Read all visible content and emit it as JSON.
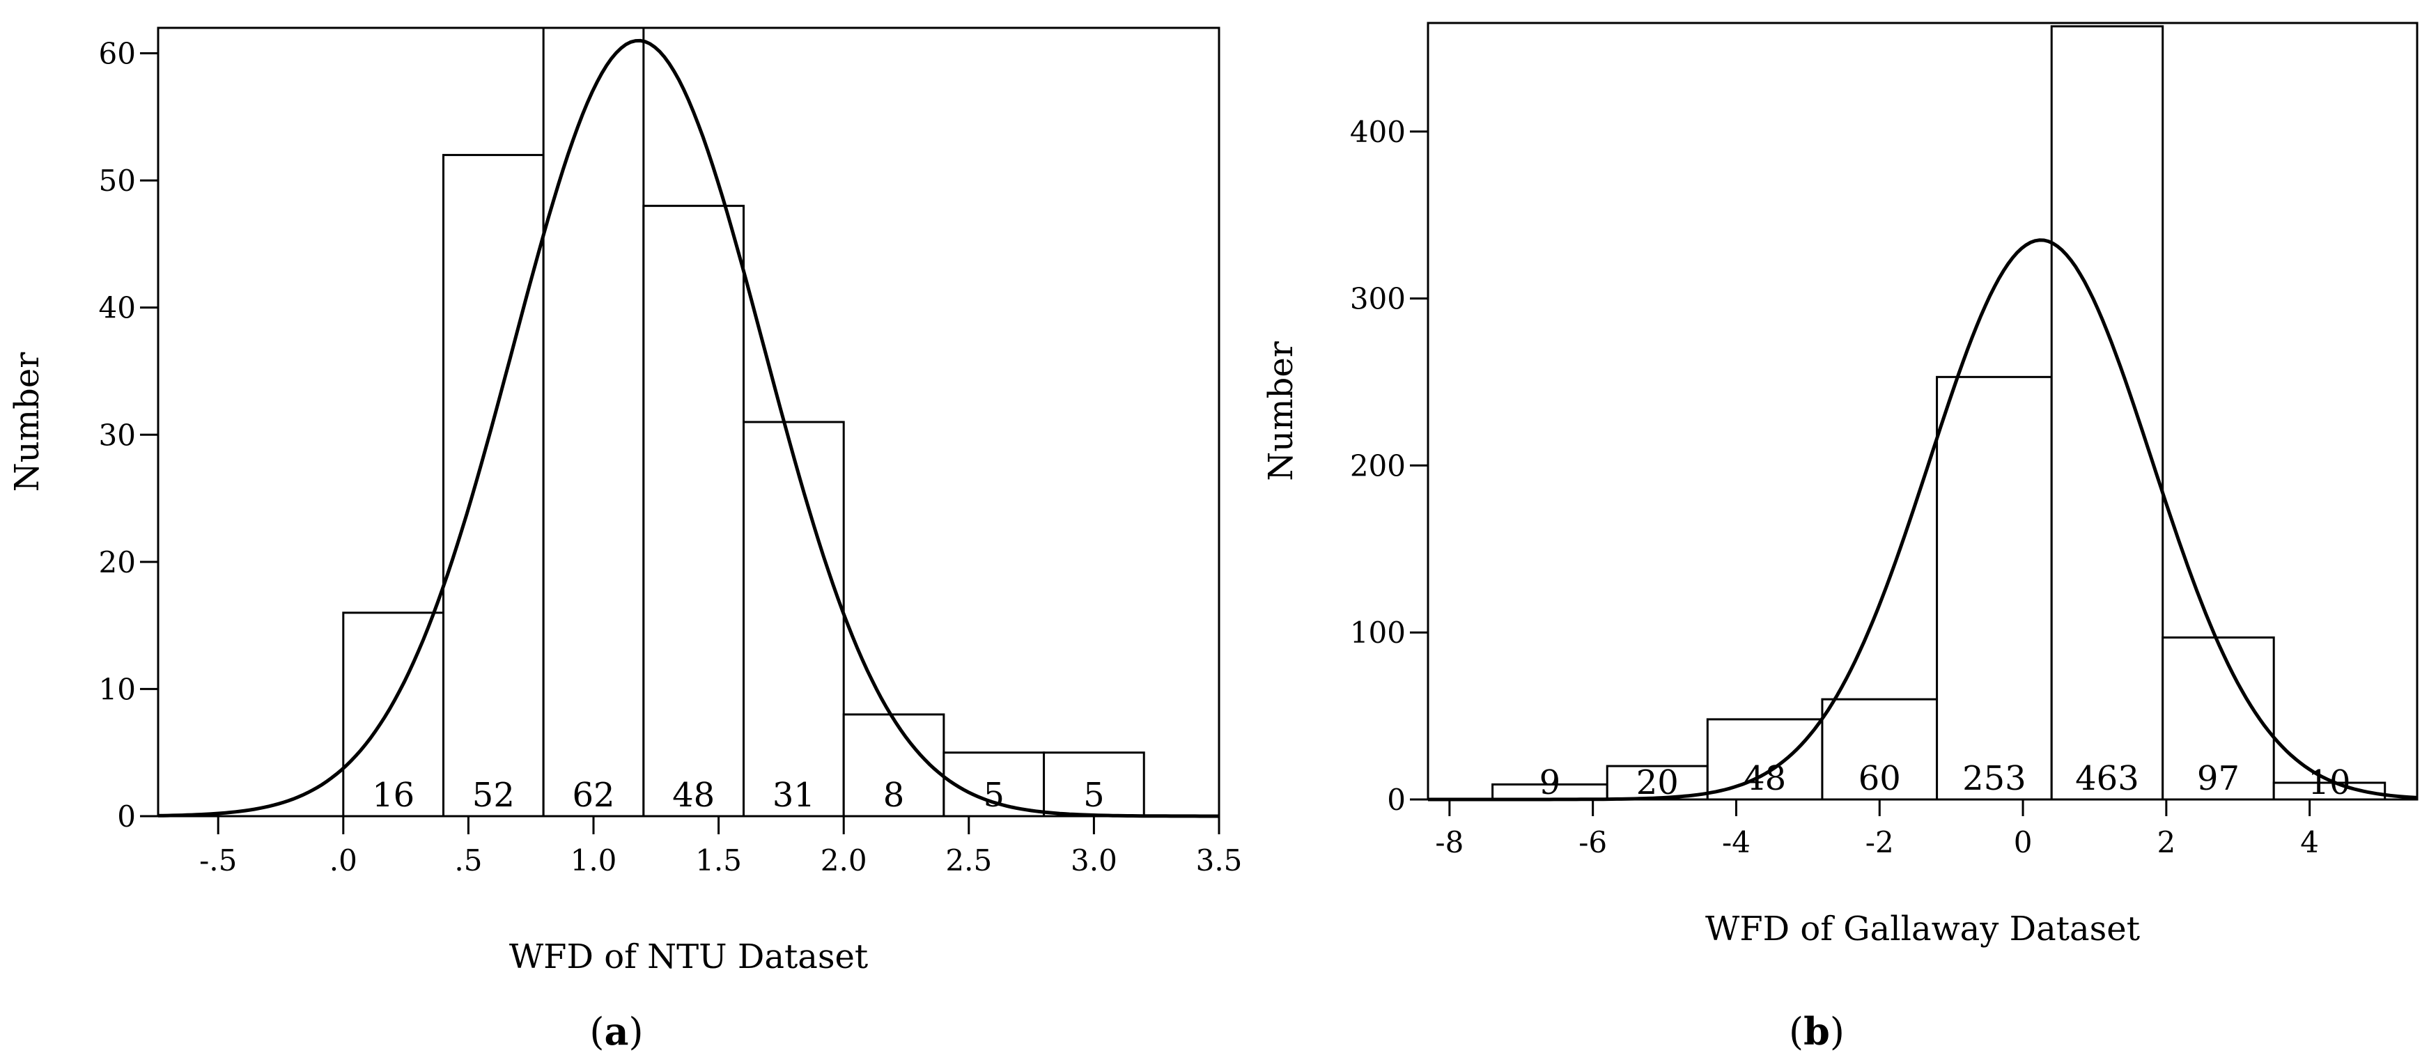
{
  "chart_data": [
    {
      "type": "bar",
      "panel_label": "a",
      "xlabel": "WFD of NTU Dataset",
      "ylabel": "Number",
      "xlim": [
        -0.74,
        3.5
      ],
      "ylim": [
        0,
        62
      ],
      "x_ticks": [
        -0.5,
        0,
        0.5,
        1.0,
        1.5,
        2.0,
        2.5,
        3.0,
        3.5
      ],
      "x_tick_labels": [
        "-.5",
        ".0",
        ".5",
        "1.0",
        "1.5",
        "2.0",
        "2.5",
        "3.0",
        "3.5"
      ],
      "y_ticks": [
        0,
        10,
        20,
        30,
        40,
        50,
        60
      ],
      "y_tick_labels": [
        "0",
        "10",
        "20",
        "30",
        "40",
        "50",
        "60"
      ],
      "bins": [
        [
          0.0,
          0.4
        ],
        [
          0.4,
          0.8
        ],
        [
          0.8,
          1.2
        ],
        [
          1.2,
          1.6
        ],
        [
          1.6,
          2.0
        ],
        [
          2.0,
          2.4
        ],
        [
          2.4,
          2.8
        ],
        [
          2.8,
          3.2
        ]
      ],
      "values": [
        16,
        52,
        62,
        48,
        31,
        8,
        5,
        5
      ],
      "value_labels": [
        "16",
        "52",
        "62",
        "48",
        "31",
        "8",
        "5",
        "5"
      ],
      "normal_curve": {
        "peak_x": 1.18,
        "peak_y": 61,
        "sd": 0.5
      },
      "grid": false
    },
    {
      "type": "bar",
      "panel_label": "b",
      "xlabel": "WFD of Gallaway Dataset",
      "ylabel": "Number",
      "xlim": [
        -8.3,
        5.5
      ],
      "ylim": [
        0,
        465
      ],
      "x_ticks": [
        -8,
        -6,
        -4,
        -2,
        0,
        2,
        4
      ],
      "x_tick_labels": [
        "-8",
        "-6",
        "-4",
        "-2",
        "0",
        "2",
        "4"
      ],
      "y_ticks": [
        0,
        100,
        200,
        300,
        400
      ],
      "y_tick_labels": [
        "0",
        "100",
        "200",
        "300",
        "400"
      ],
      "bins": [
        [
          -7.4,
          -5.8
        ],
        [
          -5.8,
          -4.4
        ],
        [
          -4.4,
          -2.8
        ],
        [
          -2.8,
          -1.2
        ],
        [
          -1.2,
          0.4
        ],
        [
          0.4,
          1.95
        ],
        [
          1.95,
          3.5
        ],
        [
          3.5,
          5.05
        ]
      ],
      "values": [
        9,
        20,
        48,
        60,
        253,
        463,
        97,
        10
      ],
      "value_labels": [
        "9",
        "20",
        "48",
        "60",
        "253",
        "463",
        "97",
        "10"
      ],
      "normal_curve": {
        "peak_x": 0.25,
        "peak_y": 335,
        "sd": 1.55
      },
      "grid": false
    }
  ]
}
